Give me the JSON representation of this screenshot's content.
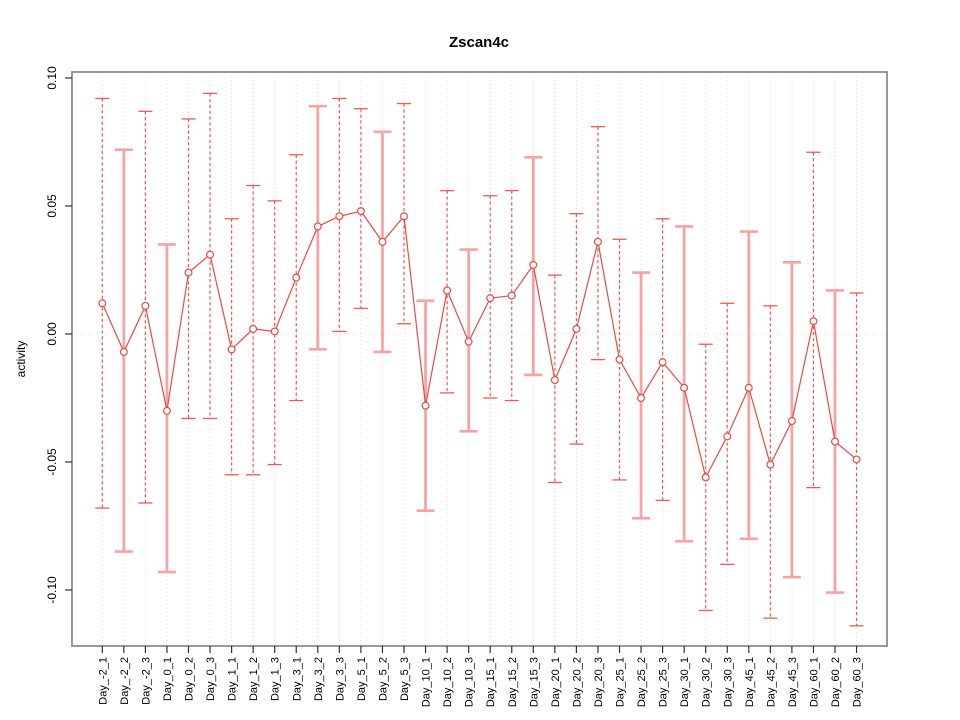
{
  "chart_data": {
    "type": "line",
    "title": "Zscan4c",
    "xlabel": "",
    "ylabel": "activity",
    "legend": "none",
    "grid": "vertical dotted gridline per category; dotted horizontal line at y=0",
    "categories": [
      "Day_-2_1",
      "Day_-2_2",
      "Day_-2_3",
      "Day_0_1",
      "Day_0_2",
      "Day_0_3",
      "Day_1_1",
      "Day_1_2",
      "Day_1_3",
      "Day_3_1",
      "Day_3_2",
      "Day_3_3",
      "Day_5_1",
      "Day_5_2",
      "Day_5_3",
      "Day_10_1",
      "Day_10_2",
      "Day_10_3",
      "Day_15_1",
      "Day_15_2",
      "Day_15_3",
      "Day_20_1",
      "Day_20_2",
      "Day_20_3",
      "Day_25_1",
      "Day_25_2",
      "Day_25_3",
      "Day_30_1",
      "Day_30_2",
      "Day_30_3",
      "Day_45_1",
      "Day_45_2",
      "Day_45_3",
      "Day_60_1",
      "Day_60_2",
      "Day_60_3"
    ],
    "series": [
      {
        "name": "activity",
        "marker": "open-circle",
        "values": [
          0.012,
          -0.007,
          0.011,
          -0.03,
          0.024,
          0.031,
          -0.006,
          0.002,
          0.001,
          0.022,
          0.042,
          0.046,
          0.048,
          0.036,
          0.046,
          -0.028,
          0.017,
          -0.003,
          0.014,
          0.015,
          0.027,
          -0.018,
          0.002,
          0.036,
          -0.01,
          -0.025,
          -0.011,
          -0.021,
          -0.056,
          -0.04,
          -0.021,
          -0.051,
          -0.034,
          0.005,
          -0.042,
          -0.049
        ],
        "error_low": [
          -0.068,
          -0.085,
          -0.066,
          -0.093,
          -0.033,
          -0.033,
          -0.055,
          -0.055,
          -0.051,
          -0.026,
          -0.006,
          0.001,
          0.01,
          -0.007,
          0.004,
          -0.069,
          -0.023,
          -0.038,
          -0.025,
          -0.026,
          -0.016,
          -0.058,
          -0.043,
          -0.01,
          -0.057,
          -0.072,
          -0.065,
          -0.081,
          -0.108,
          -0.09,
          -0.08,
          -0.111,
          -0.095,
          -0.06,
          -0.101,
          -0.114
        ],
        "error_high": [
          0.092,
          0.072,
          0.087,
          0.035,
          0.084,
          0.094,
          0.045,
          0.058,
          0.052,
          0.07,
          0.089,
          0.092,
          0.088,
          0.079,
          0.09,
          0.013,
          0.056,
          0.033,
          0.054,
          0.056,
          0.069,
          0.023,
          0.047,
          0.081,
          0.037,
          0.024,
          0.045,
          0.042,
          -0.004,
          0.012,
          0.04,
          0.011,
          0.028,
          0.071,
          0.017,
          0.016
        ],
        "thick_error_indices": [
          1,
          3,
          10,
          13,
          15,
          17,
          20,
          25,
          27,
          30,
          32,
          34
        ]
      }
    ],
    "yticks": [
      {
        "value": 0.1,
        "label": "0.10"
      },
      {
        "value": 0.05,
        "label": "0.05"
      },
      {
        "value": 0.0,
        "label": "0.00"
      },
      {
        "value": -0.05,
        "label": "-0.05"
      },
      {
        "value": -0.1,
        "label": "-0.10"
      }
    ],
    "ylim": [
      -0.122,
      0.103
    ],
    "colors": {
      "line": "#e84b44",
      "point_stroke": "#e84b44",
      "point_fill": "#ffffff",
      "error_dashed": "#ee5a52",
      "error_thick": "#f7a3a3",
      "gridline": "#dcdcdc",
      "zero_line": "#dcdcdc",
      "box": "#8c8c8c",
      "tick": "#333333",
      "text": "#000000",
      "background": "#ffffff"
    }
  }
}
